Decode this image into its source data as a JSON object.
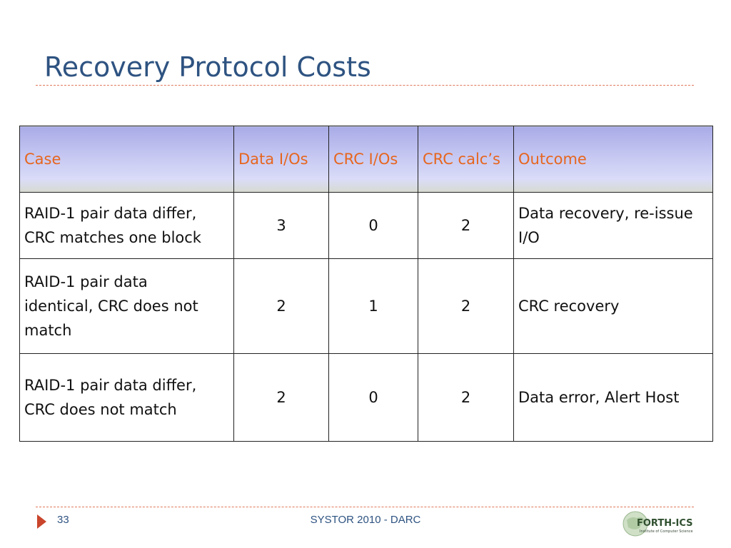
{
  "slide": {
    "title": "Recovery Protocol Costs",
    "page_number": "33",
    "footer": "SYSTOR 2010 - DARC",
    "logo_text": "FORTH-ICS",
    "logo_subtext": "Institute of Computer Science"
  },
  "table": {
    "headers": [
      "Case",
      "Data I/Os",
      "CRC I/Os",
      "CRC calc’s",
      "Outcome"
    ],
    "rows": [
      {
        "case_lines": [
          "RAID-1 pair data differ,",
          "CRC matches one block"
        ],
        "data_ios": "3",
        "crc_ios": "0",
        "crc_calcs": "2",
        "outcome_lines": [
          "Data recovery, re-issue",
          "I/O"
        ]
      },
      {
        "case_lines": [
          "RAID-1 pair data",
          "identical, CRC does not",
          "match"
        ],
        "data_ios": "2",
        "crc_ios": "1",
        "crc_calcs": "2",
        "outcome_lines": [
          "CRC recovery"
        ]
      },
      {
        "case_lines": [
          "RAID-1 pair data differ,",
          "CRC does not match"
        ],
        "data_ios": "2",
        "crc_ios": "0",
        "crc_calcs": "2",
        "outcome_lines": [
          "Data error, Alert Host"
        ]
      }
    ]
  },
  "colors": {
    "title": "#2e5381",
    "header_text": "#e6661f",
    "header_bg": "#c6c8f2",
    "rule": "#e0785a",
    "arrow": "#c9452b"
  }
}
